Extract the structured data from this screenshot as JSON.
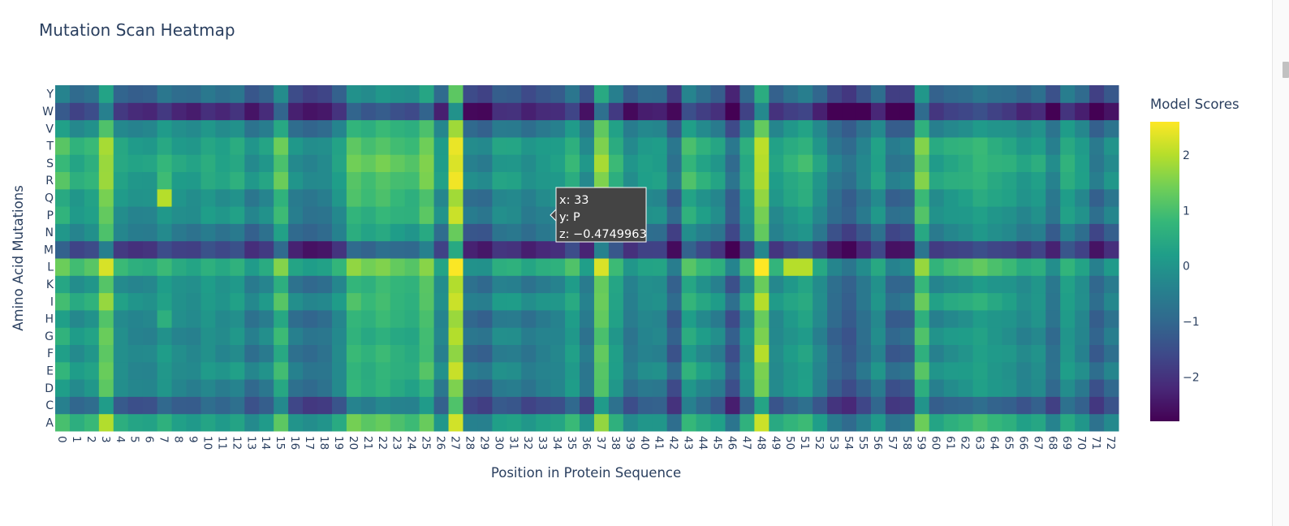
{
  "chart_data": {
    "type": "heatmap",
    "title": "Mutation Scan Heatmap",
    "xlabel": "Position in Protein Sequence",
    "ylabel": "Amino Acid Mutations",
    "x": [
      0,
      1,
      2,
      3,
      4,
      5,
      6,
      7,
      8,
      9,
      10,
      11,
      12,
      13,
      14,
      15,
      16,
      17,
      18,
      19,
      20,
      21,
      22,
      23,
      24,
      25,
      26,
      27,
      28,
      29,
      30,
      31,
      32,
      33,
      34,
      35,
      36,
      37,
      38,
      39,
      40,
      41,
      42,
      43,
      44,
      45,
      46,
      47,
      48,
      49,
      50,
      51,
      52,
      53,
      54,
      55,
      56,
      57,
      58,
      59,
      60,
      61,
      62,
      63,
      64,
      65,
      66,
      67,
      68,
      69,
      70,
      71,
      72
    ],
    "y": [
      "A",
      "C",
      "D",
      "E",
      "F",
      "G",
      "H",
      "I",
      "K",
      "L",
      "M",
      "N",
      "P",
      "Q",
      "R",
      "S",
      "T",
      "V",
      "W",
      "Y"
    ],
    "colorscale": "Viridis",
    "zmin": -2.8,
    "zmax": 2.6,
    "colorbar": {
      "title": "Model Scores",
      "ticks": [
        2,
        1,
        0,
        -1,
        -2
      ],
      "tick_labels": [
        "2",
        "1",
        "0",
        "−1",
        "−2"
      ]
    },
    "column_effects": [
      0.5,
      0,
      0.2,
      1.3,
      -0.1,
      -0.3,
      -0.3,
      0.1,
      -0.2,
      -0.3,
      0,
      -0.2,
      0,
      -0.6,
      -0.3,
      0.7,
      -0.6,
      -0.8,
      -0.7,
      -0.2,
      0.8,
      0.6,
      0.8,
      0.6,
      0.5,
      1,
      -0.3,
      1.9,
      -0.8,
      -0.9,
      -0.3,
      -0.3,
      -0.6,
      -0.4,
      -0.3,
      0.2,
      -0.6,
      1.2,
      0.2,
      -0.6,
      -0.3,
      -0.3,
      -1.2,
      0.4,
      0,
      -0.3,
      -1.3,
      0,
      1.5,
      -0.2,
      0.1,
      0.3,
      -0.3,
      -1,
      -1.3,
      -0.8,
      -0.2,
      -1.1,
      -1,
      0.9,
      -0.2,
      0,
      0.1,
      0.3,
      0.1,
      0,
      -0.3,
      -0.1,
      -0.8,
      0.1,
      -0.3,
      -1.1,
      -0.6
    ],
    "row_effects": [
      0.5,
      -1,
      -0.2,
      0.1,
      -0.1,
      0,
      -0.1,
      0.3,
      0,
      0.8,
      -1.6,
      -0.4,
      0.1,
      0.1,
      0.5,
      0.5,
      0.5,
      -0.1,
      -1.9,
      -0.8
    ],
    "cell_overrides": [
      {
        "x": 7,
        "y": "Q",
        "z": 2.0
      },
      {
        "x": 7,
        "y": "R",
        "z": 0.9
      },
      {
        "x": 7,
        "y": "H",
        "z": 0.6
      },
      {
        "x": 37,
        "y": "L",
        "z": 2.3
      },
      {
        "x": 48,
        "y": "L",
        "z": 2.6
      },
      {
        "x": 50,
        "y": "L",
        "z": 2.0
      },
      {
        "x": 51,
        "y": "L",
        "z": 2.0
      },
      {
        "x": 48,
        "y": "I",
        "z": 2.0
      },
      {
        "x": 48,
        "y": "F",
        "z": 2.0
      },
      {
        "x": 27,
        "y": "R",
        "z": 2.5
      },
      {
        "x": 46,
        "y": "W",
        "z": -2.8
      },
      {
        "x": 42,
        "y": "W",
        "z": -2.7
      }
    ],
    "hover": {
      "line_x": "x: 33",
      "line_y": "y: P",
      "line_z": "z: −0.4749963"
    }
  }
}
